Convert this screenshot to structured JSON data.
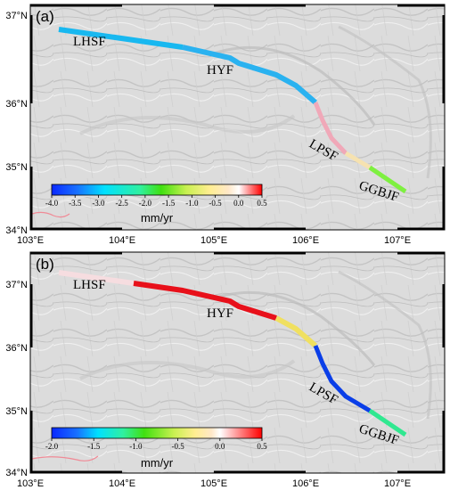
{
  "panels": [
    {
      "label": "(a)",
      "faults": [
        {
          "name": "LHSF"
        },
        {
          "name": "HYF"
        },
        {
          "name": "LPSF"
        },
        {
          "name": "GGBJF"
        }
      ],
      "colorbar": {
        "min": -4.0,
        "max": 0.5,
        "ticks": [
          "-4.0",
          "-3.5",
          "-3.0",
          "-2.5",
          "-2.0",
          "-1.5",
          "-1.0",
          "-0.5",
          "0.0",
          "0.5"
        ],
        "tick_values": [
          -4.0,
          -3.5,
          -3.0,
          -2.5,
          -2.0,
          -1.5,
          -1.0,
          -0.5,
          0.0,
          0.5
        ],
        "unit": "mm/yr"
      },
      "lon_ticks": [
        "103°E",
        "104°E",
        "105°E",
        "106°E",
        "107°E"
      ],
      "lat_ticks": [
        "37°N",
        "36°N",
        "35°N",
        "34°N"
      ],
      "colors": {
        "trace_1": "#18b8f0",
        "trace_2": "#2ab2f0",
        "trace_3": "#f0a8b8",
        "trace_4": "#f6e2b0",
        "trace_5": "#7ef040"
      }
    },
    {
      "label": "(b)",
      "faults": [
        {
          "name": "LHSF"
        },
        {
          "name": "HYF"
        },
        {
          "name": "LPSF"
        },
        {
          "name": "GGBJF"
        }
      ],
      "colorbar": {
        "min": -2.0,
        "max": 0.5,
        "ticks": [
          "-2.0",
          "-1.5",
          "-1.0",
          "-0.5",
          "0.0",
          "0.5"
        ],
        "tick_values": [
          -2.0,
          -1.5,
          -1.0,
          -0.5,
          0.0,
          0.5
        ],
        "unit": "mm/yr"
      },
      "lon_ticks": [
        "103°E",
        "104°E",
        "105°E",
        "106°E",
        "107°E"
      ],
      "lat_ticks": [
        "37°N",
        "36°N",
        "35°N",
        "34°N"
      ],
      "colors": {
        "trace_1": "#f6dde0",
        "trace_2": "#e8101a",
        "trace_3": "#f0e060",
        "trace_4": "#0a3ee8",
        "trace_5": "#30e890"
      }
    }
  ]
}
